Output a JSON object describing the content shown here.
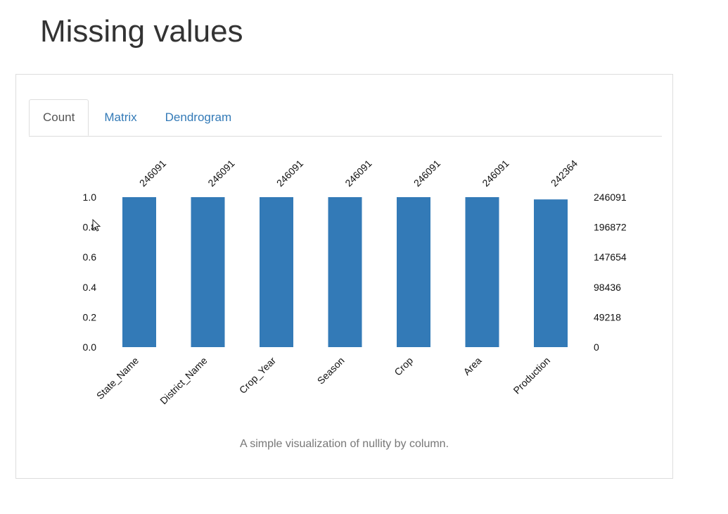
{
  "page": {
    "title": "Missing values",
    "caption": "A simple visualization of nullity by column."
  },
  "tabs": [
    {
      "label": "Count",
      "active": true
    },
    {
      "label": "Matrix",
      "active": false
    },
    {
      "label": "Dendrogram",
      "active": false
    }
  ],
  "colors": {
    "bar": "#337ab7",
    "link": "#337ab7"
  },
  "chart_data": {
    "type": "bar",
    "title": "",
    "xlabel": "",
    "ylabel": "",
    "categories": [
      "State_Name",
      "District_Name",
      "Crop_Year",
      "Season",
      "Crop",
      "Area",
      "Production"
    ],
    "values": [
      1.0,
      1.0,
      1.0,
      1.0,
      1.0,
      1.0,
      0.9849
    ],
    "bar_labels": [
      "246091",
      "246091",
      "246091",
      "246091",
      "246091",
      "246091",
      "242364"
    ],
    "ylim": [
      0,
      1.0
    ],
    "left_ticks": [
      "0.0",
      "0.2",
      "0.4",
      "0.6",
      "0.8",
      "1.0"
    ],
    "right_ticks": [
      "0",
      "49218",
      "98436",
      "147654",
      "196872",
      "246091"
    ],
    "grid": false
  }
}
